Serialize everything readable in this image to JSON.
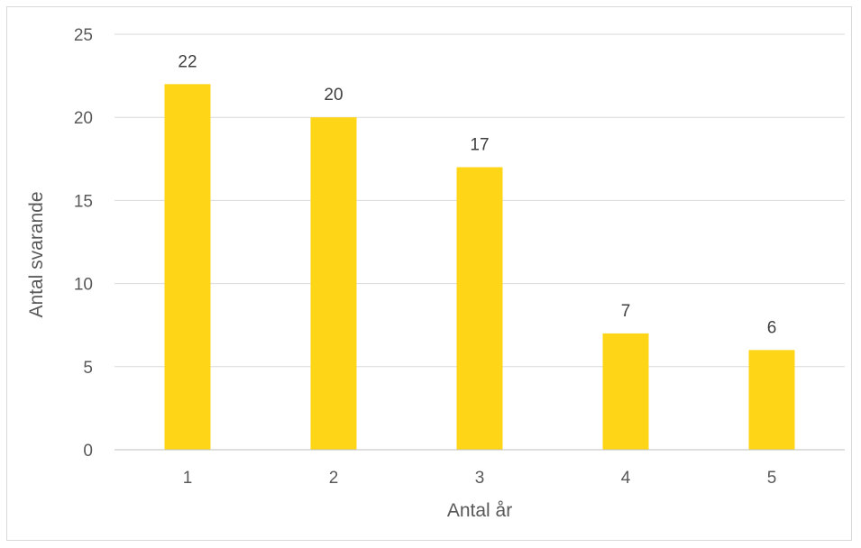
{
  "chart_data": {
    "type": "bar",
    "categories": [
      "1",
      "2",
      "3",
      "4",
      "5"
    ],
    "values": [
      22,
      20,
      17,
      7,
      6
    ],
    "data_labels": [
      "22",
      "20",
      "17",
      "7",
      "6"
    ],
    "xlabel": "Antal år",
    "ylabel": "Antal svarande",
    "ylim": [
      0,
      25
    ],
    "yticks": [
      "0",
      "5",
      "10",
      "15",
      "20",
      "25"
    ],
    "grid": "horizontal",
    "legend": "none",
    "colors": {
      "bar": "#FFD617",
      "grid": "#d9d9d9",
      "axis": "#bfbfbf",
      "text": "#595959"
    }
  }
}
